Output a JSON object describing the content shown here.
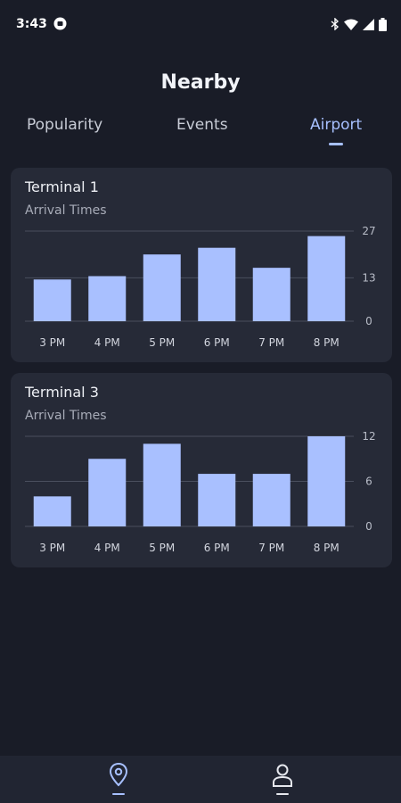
{
  "status_bar": {
    "time": "3:43"
  },
  "page": {
    "title": "Nearby"
  },
  "tabs": [
    {
      "label": "Popularity",
      "active": false
    },
    {
      "label": "Events",
      "active": false
    },
    {
      "label": "Airport",
      "active": true
    }
  ],
  "colors": {
    "background": "#191c27",
    "card": "#262a37",
    "bar": "#a9c0ff",
    "accent": "#a7c0ff",
    "grid": "#4a4f5e"
  },
  "cards": [
    {
      "title": "Terminal 1",
      "subtitle": "Arrival Times",
      "chart_data": {
        "type": "bar",
        "categories": [
          "3 PM",
          "4 PM",
          "5 PM",
          "6 PM",
          "7 PM",
          "8 PM"
        ],
        "values": [
          12.5,
          13.5,
          20,
          22,
          16,
          25.5
        ],
        "yticks": [
          "0",
          "13",
          "27"
        ],
        "ylim": [
          0,
          27
        ]
      }
    },
    {
      "title": "Terminal 3",
      "subtitle": "Arrival Times",
      "chart_data": {
        "type": "bar",
        "categories": [
          "3 PM",
          "4 PM",
          "5 PM",
          "6 PM",
          "7 PM",
          "8 PM"
        ],
        "values": [
          4,
          9,
          11,
          7,
          7,
          12
        ],
        "yticks": [
          "0",
          "6",
          "12"
        ],
        "ylim": [
          0,
          12
        ]
      }
    }
  ],
  "bottom_nav": [
    {
      "icon": "location-pin-icon",
      "active": true
    },
    {
      "icon": "profile-icon",
      "active": false
    }
  ]
}
